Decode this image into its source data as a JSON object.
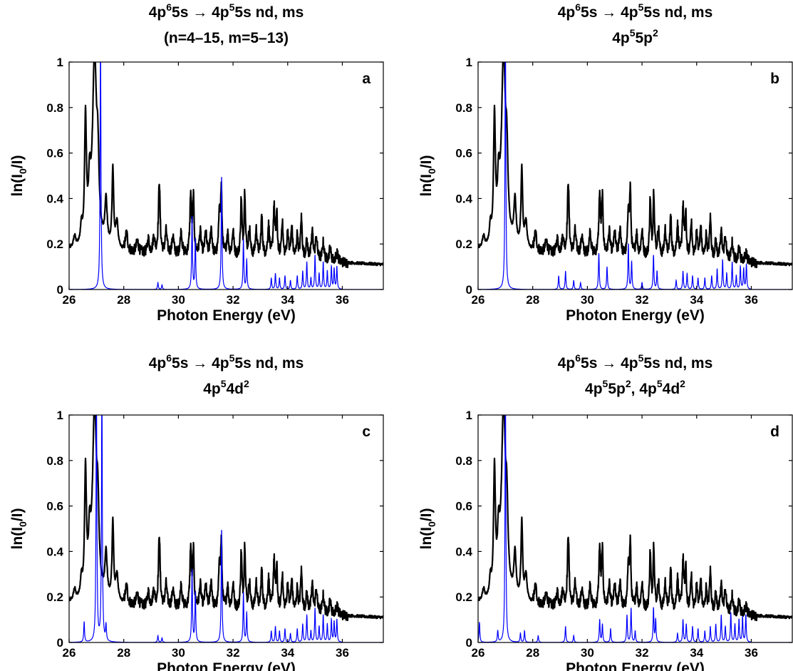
{
  "chart_data": [
    {
      "type": "line",
      "title": [
        "4p<sup>6</sup>5s → 4p<sup>5</sup>5s nd, ms",
        "(n=4–15, m=5–13)"
      ],
      "panel_label": "a",
      "xlabel": "Photon Energy (eV)",
      "ylabel": "ln(I<sub>0</sub>/I)",
      "xlim": [
        26,
        37.5
      ],
      "ylim": [
        0,
        1
      ],
      "xticks": [
        "26",
        "28",
        "30",
        "32",
        "34",
        "36"
      ],
      "yticks": [
        "0",
        "0.2",
        "0.4",
        "0.6",
        "0.8",
        "1"
      ],
      "series": [
        {
          "type": "measured",
          "color": "#000000"
        },
        {
          "type": "calculated",
          "color": "#0000ff",
          "peaks": [
            [
              27.15,
              1.15
            ],
            [
              29.25,
              0.03
            ],
            [
              29.4,
              0.02
            ],
            [
              30.5,
              0.32
            ],
            [
              30.62,
              0.22
            ],
            [
              31.58,
              0.5
            ],
            [
              32.38,
              0.22
            ],
            [
              32.5,
              0.13
            ],
            [
              33.4,
              0.05
            ],
            [
              33.55,
              0.07
            ],
            [
              33.7,
              0.05
            ],
            [
              33.9,
              0.06
            ],
            [
              34.1,
              0.04
            ],
            [
              34.35,
              0.06
            ],
            [
              34.55,
              0.08
            ],
            [
              34.7,
              0.12
            ],
            [
              34.85,
              0.05
            ],
            [
              35.0,
              0.15
            ],
            [
              35.15,
              0.07
            ],
            [
              35.3,
              0.12
            ],
            [
              35.45,
              0.08
            ],
            [
              35.6,
              0.1
            ],
            [
              35.7,
              0.09
            ],
            [
              35.8,
              0.1
            ]
          ]
        }
      ]
    },
    {
      "type": "line",
      "title": [
        "4p<sup>6</sup>5s → 4p<sup>5</sup>5s nd, ms",
        "4p<sup>5</sup>5p<sup>2</sup>"
      ],
      "panel_label": "b",
      "xlabel": "Photon Energy (eV)",
      "ylabel": "ln(I<sub>0</sub>/I)",
      "xlim": [
        26,
        37.5
      ],
      "ylim": [
        0,
        1
      ],
      "xticks": [
        "26",
        "28",
        "30",
        "32",
        "34",
        "36"
      ],
      "yticks": [
        "0",
        "0.2",
        "0.4",
        "0.6",
        "0.8",
        "1"
      ],
      "series": [
        {
          "type": "measured",
          "color": "#000000"
        },
        {
          "type": "calculated",
          "color": "#0000ff",
          "peaks": [
            [
              27.0,
              1.15
            ],
            [
              28.95,
              0.06
            ],
            [
              29.2,
              0.08
            ],
            [
              29.5,
              0.04
            ],
            [
              29.75,
              0.03
            ],
            [
              30.42,
              0.16
            ],
            [
              30.72,
              0.1
            ],
            [
              31.5,
              0.2
            ],
            [
              31.62,
              0.12
            ],
            [
              32.0,
              0.03
            ],
            [
              32.42,
              0.15
            ],
            [
              32.55,
              0.08
            ],
            [
              33.25,
              0.04
            ],
            [
              33.5,
              0.08
            ],
            [
              33.65,
              0.07
            ],
            [
              33.85,
              0.06
            ],
            [
              34.05,
              0.05
            ],
            [
              34.3,
              0.05
            ],
            [
              34.55,
              0.06
            ],
            [
              34.75,
              0.09
            ],
            [
              34.95,
              0.13
            ],
            [
              35.1,
              0.07
            ],
            [
              35.3,
              0.12
            ],
            [
              35.45,
              0.06
            ],
            [
              35.6,
              0.1
            ],
            [
              35.72,
              0.09
            ],
            [
              35.82,
              0.11
            ]
          ]
        }
      ]
    },
    {
      "type": "line",
      "title": [
        "4p<sup>6</sup>5s → 4p<sup>5</sup>5s nd, ms",
        "4p<sup>5</sup>4d<sup>2</sup>"
      ],
      "panel_label": "c",
      "xlabel": "Photon Energy (eV)",
      "ylabel": "ln(I<sub>0</sub>/I)",
      "xlim": [
        26,
        37.5
      ],
      "ylim": [
        0,
        1
      ],
      "xticks": [
        "26",
        "28",
        "30",
        "32",
        "34",
        "36"
      ],
      "yticks": [
        "0",
        "0.2",
        "0.4",
        "0.6",
        "0.8",
        "1"
      ],
      "series": [
        {
          "type": "measured",
          "color": "#000000"
        },
        {
          "type": "calculated",
          "color": "#0000ff",
          "peaks": [
            [
              26.55,
              0.09
            ],
            [
              27.0,
              1.15
            ],
            [
              27.2,
              1.15
            ],
            [
              27.35,
              0.07
            ],
            [
              29.25,
              0.03
            ],
            [
              29.4,
              0.02
            ],
            [
              30.5,
              0.32
            ],
            [
              30.62,
              0.22
            ],
            [
              31.58,
              0.5
            ],
            [
              32.38,
              0.22
            ],
            [
              32.5,
              0.13
            ],
            [
              33.4,
              0.05
            ],
            [
              33.55,
              0.07
            ],
            [
              33.7,
              0.05
            ],
            [
              33.9,
              0.06
            ],
            [
              34.1,
              0.04
            ],
            [
              34.35,
              0.06
            ],
            [
              34.55,
              0.08
            ],
            [
              34.7,
              0.12
            ],
            [
              34.85,
              0.05
            ],
            [
              35.0,
              0.15
            ],
            [
              35.15,
              0.07
            ],
            [
              35.3,
              0.12
            ],
            [
              35.45,
              0.08
            ],
            [
              35.6,
              0.1
            ],
            [
              35.7,
              0.09
            ],
            [
              35.8,
              0.1
            ]
          ]
        }
      ]
    },
    {
      "type": "line",
      "title": [
        "4p<sup>6</sup>5s → 4p<sup>5</sup>5s nd, ms",
        "4p<sup>5</sup>5p<sup>2</sup>, 4p<sup>5</sup>4d<sup>2</sup>"
      ],
      "panel_label": "d",
      "xlabel": "Photon Energy (eV)",
      "ylabel": "ln(I<sub>0</sub>/I)",
      "xlim": [
        26,
        37.5
      ],
      "ylim": [
        0,
        1
      ],
      "xticks": [
        "26",
        "28",
        "30",
        "32",
        "34",
        "36"
      ],
      "yticks": [
        "0",
        "0.2",
        "0.4",
        "0.6",
        "0.8",
        "1"
      ],
      "series": [
        {
          "type": "measured",
          "color": "#000000"
        },
        {
          "type": "calculated",
          "color": "#0000ff",
          "peaks": [
            [
              26.05,
              0.09
            ],
            [
              26.72,
              0.05
            ],
            [
              27.0,
              1.15
            ],
            [
              27.55,
              0.04
            ],
            [
              27.7,
              0.05
            ],
            [
              28.2,
              0.03
            ],
            [
              29.2,
              0.07
            ],
            [
              29.5,
              0.03
            ],
            [
              30.45,
              0.1
            ],
            [
              30.55,
              0.08
            ],
            [
              30.85,
              0.06
            ],
            [
              31.45,
              0.12
            ],
            [
              31.6,
              0.15
            ],
            [
              31.75,
              0.05
            ],
            [
              32.42,
              0.15
            ],
            [
              32.5,
              0.1
            ],
            [
              33.3,
              0.04
            ],
            [
              33.5,
              0.1
            ],
            [
              33.62,
              0.08
            ],
            [
              33.85,
              0.07
            ],
            [
              34.05,
              0.06
            ],
            [
              34.3,
              0.05
            ],
            [
              34.5,
              0.07
            ],
            [
              34.7,
              0.08
            ],
            [
              34.9,
              0.12
            ],
            [
              35.05,
              0.07
            ],
            [
              35.25,
              0.13
            ],
            [
              35.4,
              0.08
            ],
            [
              35.55,
              0.1
            ],
            [
              35.68,
              0.11
            ],
            [
              35.8,
              0.12
            ]
          ]
        }
      ]
    }
  ],
  "measured_spectrum": {
    "baseline_start": 0.17,
    "baseline_end": 0.11,
    "peaks": [
      [
        26.2,
        0.05,
        0.05
      ],
      [
        26.45,
        0.08,
        0.04
      ],
      [
        26.6,
        0.55,
        0.04
      ],
      [
        26.75,
        0.22,
        0.05
      ],
      [
        26.93,
        0.82,
        0.09
      ],
      [
        27.05,
        0.28,
        0.05
      ],
      [
        27.35,
        0.2,
        0.05
      ],
      [
        27.6,
        0.35,
        0.035
      ],
      [
        27.75,
        0.12,
        0.05
      ],
      [
        28.1,
        0.08,
        0.05
      ],
      [
        28.5,
        0.05,
        0.05
      ],
      [
        28.9,
        0.06,
        0.04
      ],
      [
        29.1,
        0.07,
        0.04
      ],
      [
        29.3,
        0.32,
        0.035
      ],
      [
        29.55,
        0.1,
        0.04
      ],
      [
        29.8,
        0.08,
        0.04
      ],
      [
        30.1,
        0.1,
        0.04
      ],
      [
        30.45,
        0.26,
        0.035
      ],
      [
        30.55,
        0.24,
        0.03
      ],
      [
        30.8,
        0.1,
        0.04
      ],
      [
        31.0,
        0.1,
        0.04
      ],
      [
        31.2,
        0.12,
        0.04
      ],
      [
        31.5,
        0.2,
        0.03
      ],
      [
        31.57,
        0.28,
        0.03
      ],
      [
        31.8,
        0.1,
        0.04
      ],
      [
        32.0,
        0.11,
        0.04
      ],
      [
        32.3,
        0.25,
        0.03
      ],
      [
        32.43,
        0.28,
        0.03
      ],
      [
        32.6,
        0.12,
        0.04
      ],
      [
        32.85,
        0.12,
        0.04
      ],
      [
        33.05,
        0.18,
        0.035
      ],
      [
        33.3,
        0.14,
        0.04
      ],
      [
        33.5,
        0.22,
        0.035
      ],
      [
        33.6,
        0.18,
        0.03
      ],
      [
        33.8,
        0.16,
        0.035
      ],
      [
        34.0,
        0.12,
        0.035
      ],
      [
        34.15,
        0.14,
        0.035
      ],
      [
        34.35,
        0.1,
        0.035
      ],
      [
        34.5,
        0.18,
        0.035
      ],
      [
        34.7,
        0.08,
        0.04
      ],
      [
        34.9,
        0.12,
        0.04
      ],
      [
        35.05,
        0.1,
        0.04
      ],
      [
        35.3,
        0.08,
        0.04
      ],
      [
        35.55,
        0.06,
        0.04
      ],
      [
        35.8,
        0.04,
        0.05
      ]
    ]
  }
}
